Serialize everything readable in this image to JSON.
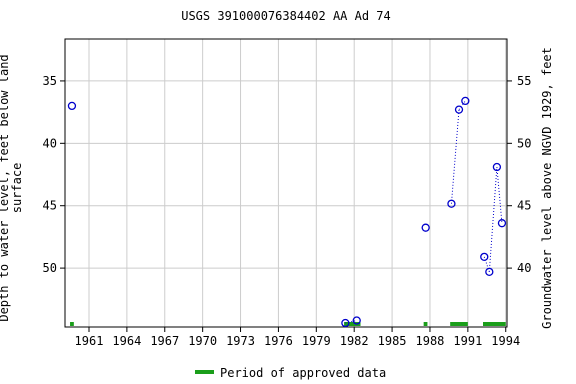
{
  "chart_data": {
    "type": "scatter",
    "title": "USGS 391000076384402 AA Ad  74",
    "y_label": "Depth to water level, feet below land surface",
    "y2_label": "Groundwater level above NGVD 1929, feet",
    "series": [
      {
        "name": "Depth to water level",
        "color": "#0000cc",
        "x": [
          1959.65,
          1981.3,
          1982.2,
          1987.66,
          1989.7,
          1990.3,
          1990.8,
          1992.3,
          1992.7,
          1993.3,
          1993.7
        ],
        "values": [
          37.0,
          54.4,
          54.2,
          46.76,
          44.84,
          37.3,
          36.6,
          49.1,
          50.3,
          41.9,
          46.4
        ]
      }
    ],
    "approved_periods": {
      "name": "Period of approved data",
      "color": "#1a9e1a",
      "ranges": [
        [
          1959.5,
          1959.8
        ],
        [
          1981.2,
          1982.5
        ],
        [
          1987.5,
          1987.8
        ],
        [
          1989.6,
          1991.0
        ],
        [
          1992.2,
          1994.0
        ]
      ]
    },
    "xlim": [
      1959.1,
      1994.1
    ],
    "xticks": [
      1961,
      1964,
      1967,
      1970,
      1973,
      1976,
      1979,
      1982,
      1985,
      1988,
      1991,
      1994
    ],
    "ylim": [
      54.72,
      31.64
    ],
    "yticks": [
      35,
      40,
      45,
      50
    ],
    "y2lim": [
      35.28,
      58.36
    ],
    "y2ticks": [
      40,
      45,
      50,
      55
    ],
    "grid": true
  }
}
